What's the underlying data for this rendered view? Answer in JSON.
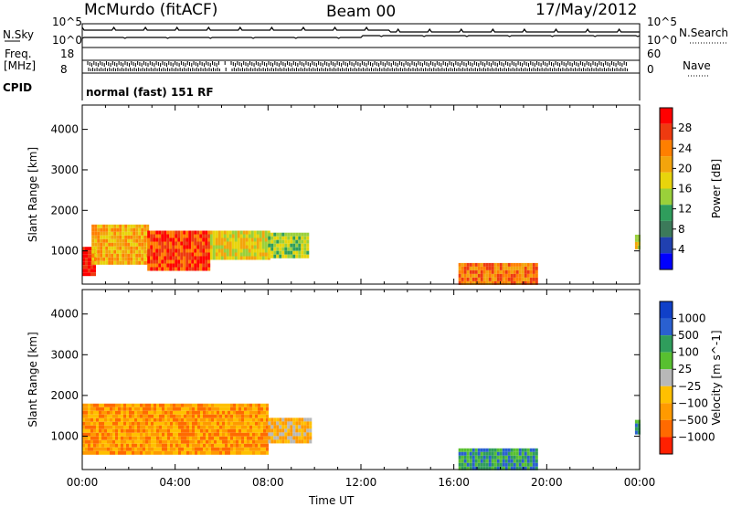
{
  "header": {
    "station": "McMurdo (fitACF)",
    "beam": "Beam 00",
    "date": "17/May/2012"
  },
  "summary_panel": {
    "left_labels": {
      "nsky": "N.Sky",
      "freq": "Freq.",
      "freq_unit": "[MHz]",
      "cpid": "CPID"
    },
    "right_labels": {
      "nsearch": "N.Search",
      "nave": "Nave"
    },
    "noise_ticks": {
      "top": "10^5",
      "bottom": "10^0"
    },
    "freq_ticks": {
      "top": "18",
      "bottom": "8"
    },
    "nave_ticks": {
      "top": "60",
      "bottom": "0"
    },
    "cpid_text": "normal (fast) 151 RF"
  },
  "chart_data": [
    {
      "type": "heatmap",
      "name": "power",
      "ylabel": "Slant Range [km]",
      "yticks": [
        1000,
        2000,
        3000,
        4000
      ],
      "ylim": [
        180,
        4600
      ],
      "xlim": [
        0,
        24
      ],
      "colorbar": {
        "label": "Power [dB]",
        "ticks": [
          "28",
          "24",
          "20",
          "16",
          "12",
          "8",
          "4"
        ],
        "colors": [
          "#ff0000",
          "#ee3a10",
          "#ff7f00",
          "#f3a40c",
          "#e8d40c",
          "#9ad03a",
          "#2f9d5c",
          "#3c7a5a",
          "#2040b0",
          "#0000ff"
        ]
      },
      "echo_regions": [
        {
          "t0": 0.0,
          "t1": 0.5,
          "r0": 450,
          "r1": 1100,
          "level": 9
        },
        {
          "t0": 0.4,
          "t1": 2.8,
          "r0": 700,
          "r1": 1650,
          "level": 6
        },
        {
          "t0": 2.8,
          "t1": 5.5,
          "r0": 550,
          "r1": 1500,
          "level": 8
        },
        {
          "t0": 5.5,
          "t1": 8.0,
          "r0": 850,
          "r1": 1500,
          "level": 5
        },
        {
          "t0": 8.0,
          "t1": 9.7,
          "r0": 850,
          "r1": 1450,
          "level": 4
        },
        {
          "t0": 16.2,
          "t1": 19.6,
          "r0": 230,
          "r1": 700,
          "level": 7
        },
        {
          "t0": 23.8,
          "t1": 24.0,
          "r0": 1050,
          "r1": 1400,
          "level": 5
        }
      ]
    },
    {
      "type": "heatmap",
      "name": "velocity",
      "ylabel": "Slant Range [km]",
      "yticks": [
        1000,
        2000,
        3000,
        4000
      ],
      "ylim": [
        180,
        4600
      ],
      "xlim": [
        0,
        24
      ],
      "xticks": [
        "00:00",
        "04:00",
        "08:00",
        "12:00",
        "16:00",
        "20:00",
        "00:00"
      ],
      "xlabel": "Time UT",
      "colorbar": {
        "label": "Velocity [m s^-1]",
        "ticks": [
          "1000",
          "500",
          "100",
          "25",
          "−25",
          "−100",
          "−500",
          "−1000"
        ],
        "colors": [
          "#1040c8",
          "#2a60d0",
          "#2f9d5c",
          "#58c030",
          "#b8b8b8",
          "#ffc000",
          "#ff9a00",
          "#ff6a00",
          "#ff2000"
        ]
      },
      "echo_regions": [
        {
          "t0": 0.0,
          "t1": 8.0,
          "r0": 550,
          "r1": 1800,
          "level": 2
        },
        {
          "t0": 8.0,
          "t1": 9.8,
          "r0": 850,
          "r1": 1450,
          "level": 3
        },
        {
          "t0": 16.2,
          "t1": 19.6,
          "r0": 230,
          "r1": 700,
          "level": 6
        },
        {
          "t0": 23.8,
          "t1": 24.0,
          "r0": 1050,
          "r1": 1400,
          "level": 6
        }
      ]
    }
  ]
}
